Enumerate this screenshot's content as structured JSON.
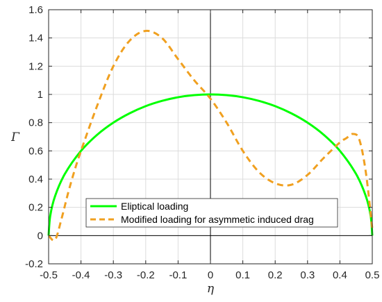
{
  "chart_data": {
    "type": "line",
    "title": "",
    "xlabel": "η",
    "ylabel": "Γ",
    "xlim": [
      -0.5,
      0.5
    ],
    "ylim": [
      -0.2,
      1.6
    ],
    "xticks": [
      -0.5,
      -0.4,
      -0.3,
      -0.2,
      -0.1,
      0,
      0.1,
      0.2,
      0.3,
      0.4,
      0.5
    ],
    "yticks": [
      -0.2,
      0,
      0.2,
      0.4,
      0.6,
      0.8,
      1,
      1.2,
      1.4,
      1.6
    ],
    "xtick_labels": [
      "-0.5",
      "-0.4",
      "-0.3",
      "-0.2",
      "-0.1",
      "0",
      "0.1",
      "0.2",
      "0.3",
      "0.4",
      "0.5"
    ],
    "ytick_labels": [
      "-0.2",
      "0",
      "0.2",
      "0.4",
      "0.6",
      "0.8",
      "1",
      "1.2",
      "1.4",
      "1.6"
    ],
    "grid": true,
    "zero_lines": true,
    "legend_position": "bottom-center",
    "series": [
      {
        "name": "Eliptical loading",
        "color": "#00ff00",
        "style": "solid",
        "x": [
          -0.5,
          -0.495,
          -0.48,
          -0.45,
          -0.4,
          -0.35,
          -0.3,
          -0.25,
          -0.2,
          -0.15,
          -0.1,
          -0.05,
          0,
          0.05,
          0.1,
          0.15,
          0.2,
          0.25,
          0.3,
          0.35,
          0.4,
          0.45,
          0.48,
          0.495,
          0.5
        ],
        "y": [
          0,
          0.14,
          0.28,
          0.436,
          0.6,
          0.714,
          0.8,
          0.866,
          0.917,
          0.954,
          0.98,
          0.995,
          1,
          0.995,
          0.98,
          0.954,
          0.917,
          0.866,
          0.8,
          0.714,
          0.6,
          0.436,
          0.28,
          0.14,
          0
        ]
      },
      {
        "name": "Modified loading for asymmetic induced drag",
        "color": "#f0a020",
        "style": "dashed",
        "x": [
          -0.5,
          -0.48,
          -0.46,
          -0.44,
          -0.42,
          -0.4,
          -0.35,
          -0.3,
          -0.25,
          -0.2,
          -0.15,
          -0.1,
          -0.05,
          0,
          0.05,
          0.1,
          0.15,
          0.2,
          0.25,
          0.3,
          0.35,
          0.4,
          0.42,
          0.44,
          0.46,
          0.48,
          0.5
        ],
        "y": [
          0,
          -0.03,
          0.12,
          0.3,
          0.46,
          0.6,
          0.92,
          1.2,
          1.38,
          1.45,
          1.4,
          1.25,
          1.1,
          0.97,
          0.8,
          0.6,
          0.45,
          0.37,
          0.36,
          0.43,
          0.55,
          0.66,
          0.69,
          0.72,
          0.68,
          0.45,
          0.05
        ]
      }
    ]
  }
}
